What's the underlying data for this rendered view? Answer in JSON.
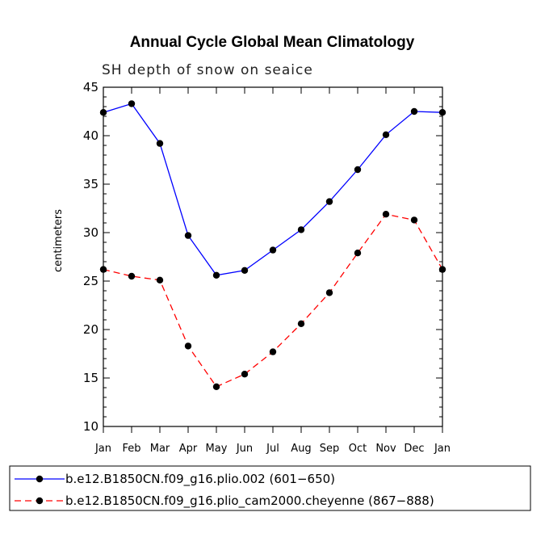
{
  "chart_data": {
    "type": "line",
    "title": "Annual Cycle Global Mean Climatology",
    "subtitle": "SH depth of snow on seaice",
    "ylabel": "centimeters",
    "xlabel": "",
    "ylim": [
      10,
      45
    ],
    "yticks": [
      10,
      15,
      20,
      25,
      30,
      35,
      40,
      45
    ],
    "categories": [
      "Jan",
      "Feb",
      "Mar",
      "Apr",
      "May",
      "Jun",
      "Jul",
      "Aug",
      "Sep",
      "Oct",
      "Nov",
      "Dec",
      "Jan"
    ],
    "grid": false,
    "legend_position": "bottom",
    "series": [
      {
        "name": "b.e12.B1850CN.f09_g16.plio.002 (601−650)",
        "color": "#0000ff",
        "dash": "solid",
        "values": [
          42.4,
          43.3,
          39.2,
          29.7,
          25.6,
          26.1,
          28.2,
          30.3,
          33.2,
          36.5,
          40.1,
          42.5,
          42.4
        ]
      },
      {
        "name": "b.e12.B1850CN.f09_g16.plio_cam2000.cheyenne (867−888)",
        "color": "#ff0000",
        "dash": "dashed",
        "values": [
          26.2,
          25.5,
          25.1,
          18.3,
          14.1,
          15.4,
          17.7,
          20.6,
          23.8,
          27.9,
          31.9,
          31.3,
          26.2
        ]
      }
    ]
  }
}
